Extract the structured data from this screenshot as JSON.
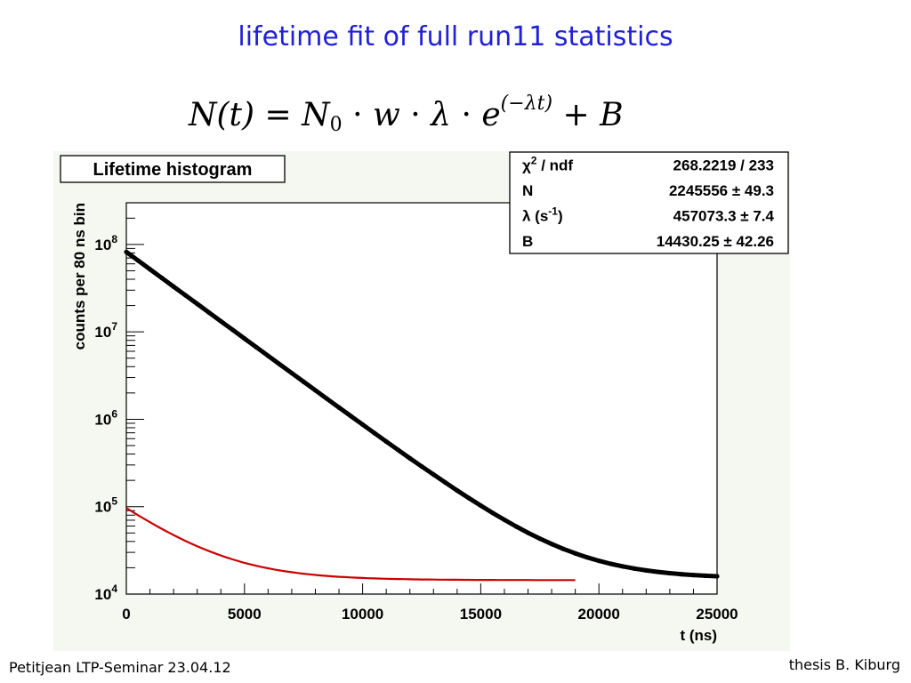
{
  "slide": {
    "title": "lifetime fit of full run11 statistics",
    "formula": {
      "lhs": "N(t) =",
      "n": "N",
      "n_sub": "0",
      "dot1": "·",
      "w": "w",
      "dot2": "·",
      "lambda": "λ",
      "dot3": "·",
      "e": "e",
      "exponent": "(−λt)",
      "plus_b": "+ B"
    },
    "footer_left": "Petitjean LTP-Seminar 23.04.12",
    "footer_right": "thesis B. Kiburg"
  },
  "chart_data": {
    "type": "scatter",
    "title": "Lifetime histogram",
    "xlabel": "t (ns)",
    "ylabel": "counts per 80 ns bin",
    "xlim": [
      0,
      25000
    ],
    "ylim": [
      10000,
      300000000
    ],
    "yscale": "log",
    "x_ticks": [
      "0",
      "5000",
      "10000",
      "15000",
      "20000",
      "25000"
    ],
    "y_ticks": [
      {
        "base": "10",
        "exp": "4",
        "value": 10000
      },
      {
        "base": "10",
        "exp": "5",
        "value": 100000
      },
      {
        "base": "10",
        "exp": "6",
        "value": 1000000
      },
      {
        "base": "10",
        "exp": "7",
        "value": 10000000
      },
      {
        "base": "10",
        "exp": "8",
        "value": 100000000
      }
    ],
    "fit": {
      "N": 2245556,
      "lambda_per_s": 457073.3,
      "B": 14430.25,
      "bin_width_ns": 80,
      "range": [
        0,
        19000
      ],
      "color": "#cc0000"
    },
    "data_color": "#000000",
    "series": [
      {
        "x": [
          0,
          500,
          1000,
          1500,
          2000,
          2500,
          3000,
          3500,
          4000,
          4500,
          5000,
          5500,
          6000,
          6500,
          7000,
          7500,
          8000,
          8500,
          9000,
          9500,
          10000,
          10500,
          11000,
          11500,
          12000,
          12500,
          13000,
          13500,
          14000,
          14500,
          15000,
          15500,
          16000,
          16500,
          17000,
          17500,
          18000,
          18500,
          19000,
          19500,
          20000,
          20500,
          21000,
          21500,
          22000,
          22500,
          23000,
          23500,
          24000,
          24500,
          25000
        ],
        "y": [
          82110000,
          65350000,
          52020000,
          41410000,
          32960000,
          26240000,
          20890000,
          16630000,
          13240000,
          10540000,
          8391000,
          6681000,
          5320000,
          4237000,
          3375000,
          2689000,
          2143000,
          1709000,
          1363000,
          1088000,
          869000,
          694900,
          556300,
          446000,
          358300,
          288500,
          232900,
          188600,
          153300,
          125200,
          102800,
          84930,
          70680,
          59340,
          50300,
          43110,
          37390,
          32830,
          29210,
          26330,
          24030,
          22200,
          20750,
          19590,
          18670,
          17930,
          17350,
          16880,
          16510,
          16210,
          15980
        ]
      }
    ],
    "stats": [
      {
        "label_html": "χ<sup>2</sup> / ndf",
        "value": "268.2219 / 233"
      },
      {
        "label_html": "N",
        "value": "2245556 ± 49.3"
      },
      {
        "label_html": "λ (s<sup>-1</sup>)",
        "value": "457073.3 ± 7.4"
      },
      {
        "label_html": "B",
        "value": "14430.25 ± 42.26"
      }
    ],
    "background": "#f5f7f1",
    "plot_background": "#ffffff"
  }
}
